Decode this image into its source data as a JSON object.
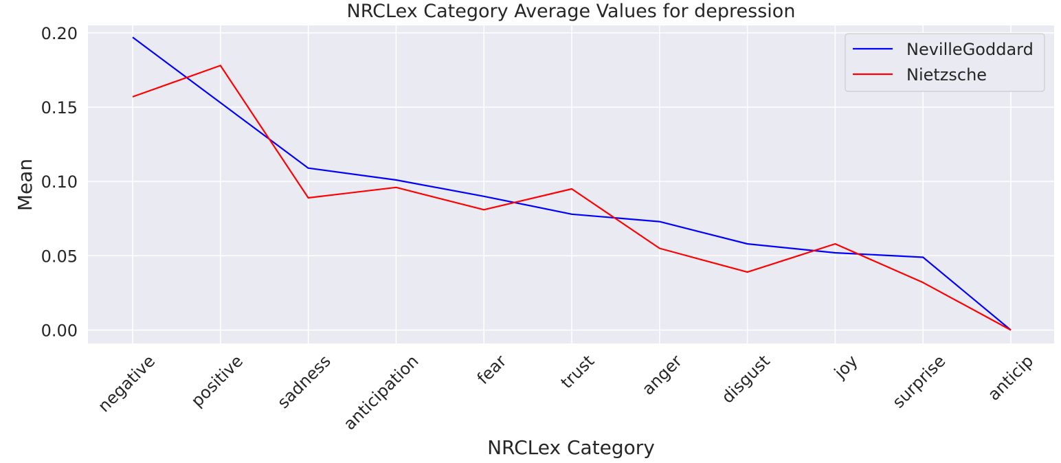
{
  "chart_data": {
    "type": "line",
    "title": "NRCLex Category Average Values for depression",
    "xlabel": "NRCLex Category",
    "ylabel": "Mean",
    "categories": [
      "negative",
      "positive",
      "sadness",
      "anticipation",
      "fear",
      "trust",
      "anger",
      "disgust",
      "joy",
      "surprise",
      "anticip"
    ],
    "yticks": [
      "0.00",
      "0.05",
      "0.10",
      "0.15",
      "0.20"
    ],
    "ylim": [
      -0.009,
      0.205
    ],
    "grid": true,
    "legend_position": "top-right",
    "series": [
      {
        "name": "NevilleGoddard",
        "color": "#0000ff",
        "values": [
          0.197,
          0.153,
          0.109,
          0.101,
          0.09,
          0.078,
          0.073,
          0.058,
          0.052,
          0.049,
          0.0
        ]
      },
      {
        "name": "Nietzsche",
        "color": "#ff0000",
        "values": [
          0.157,
          0.178,
          0.089,
          0.096,
          0.081,
          0.095,
          0.055,
          0.039,
          0.058,
          0.032,
          0.0
        ]
      }
    ]
  }
}
